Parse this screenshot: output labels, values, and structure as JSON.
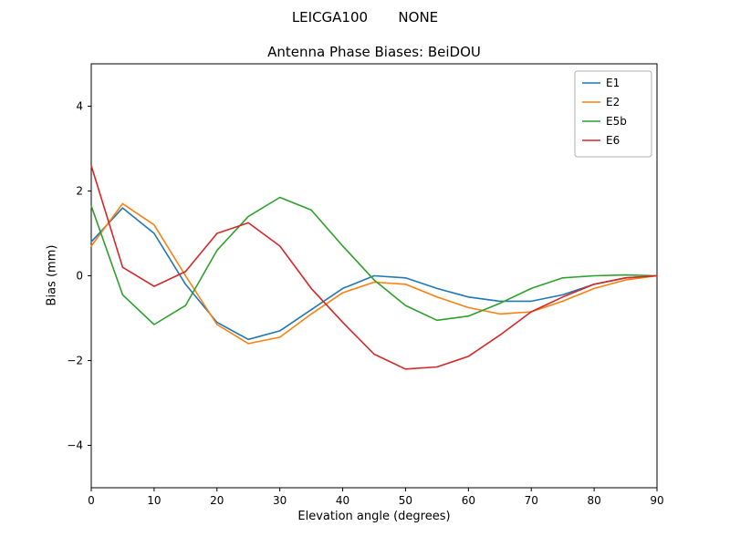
{
  "figure": {
    "suptitle": "LEICGA100       NONE",
    "title": "Antenna Phase Biases: BeiDOU",
    "xlabel": "Elevation angle (degrees)",
    "ylabel": "Bias (mm)"
  },
  "chart_data": {
    "type": "line",
    "title": "Antenna Phase Biases: BeiDOU",
    "suptitle": "LEICGA100       NONE",
    "xlabel": "Elevation angle (degrees)",
    "ylabel": "Bias (mm)",
    "xlim": [
      0,
      90
    ],
    "ylim": [
      -5,
      5
    ],
    "xticks": [
      0,
      10,
      20,
      30,
      40,
      50,
      60,
      70,
      80,
      90
    ],
    "yticks": [
      -4,
      -2,
      0,
      2,
      4
    ],
    "grid": false,
    "legend_position": "upper right",
    "x": [
      0,
      5,
      10,
      15,
      20,
      25,
      30,
      35,
      40,
      45,
      50,
      55,
      60,
      65,
      70,
      75,
      80,
      85,
      90
    ],
    "series": [
      {
        "name": "E1",
        "color": "#1f77b4",
        "values": [
          0.8,
          1.6,
          1.0,
          -0.2,
          -1.1,
          -1.5,
          -1.3,
          -0.8,
          -0.3,
          0.0,
          -0.05,
          -0.3,
          -0.5,
          -0.6,
          -0.6,
          -0.45,
          -0.2,
          -0.05,
          0.0
        ]
      },
      {
        "name": "E2",
        "color": "#ff7f0e",
        "values": [
          0.7,
          1.7,
          1.2,
          0.0,
          -1.15,
          -1.6,
          -1.45,
          -0.9,
          -0.4,
          -0.15,
          -0.2,
          -0.5,
          -0.75,
          -0.9,
          -0.85,
          -0.6,
          -0.3,
          -0.1,
          0.0
        ]
      },
      {
        "name": "E5b",
        "color": "#2ca02c",
        "values": [
          1.65,
          -0.45,
          -1.15,
          -0.7,
          0.6,
          1.4,
          1.85,
          1.55,
          0.7,
          -0.1,
          -0.7,
          -1.05,
          -0.95,
          -0.65,
          -0.3,
          -0.05,
          0.0,
          0.02,
          0.0
        ]
      },
      {
        "name": "E6",
        "color": "#d62728",
        "values": [
          2.6,
          0.2,
          -0.25,
          0.1,
          1.0,
          1.25,
          0.7,
          -0.3,
          -1.1,
          -1.85,
          -2.2,
          -2.15,
          -1.9,
          -1.4,
          -0.85,
          -0.5,
          -0.2,
          -0.05,
          0.0
        ]
      }
    ]
  }
}
